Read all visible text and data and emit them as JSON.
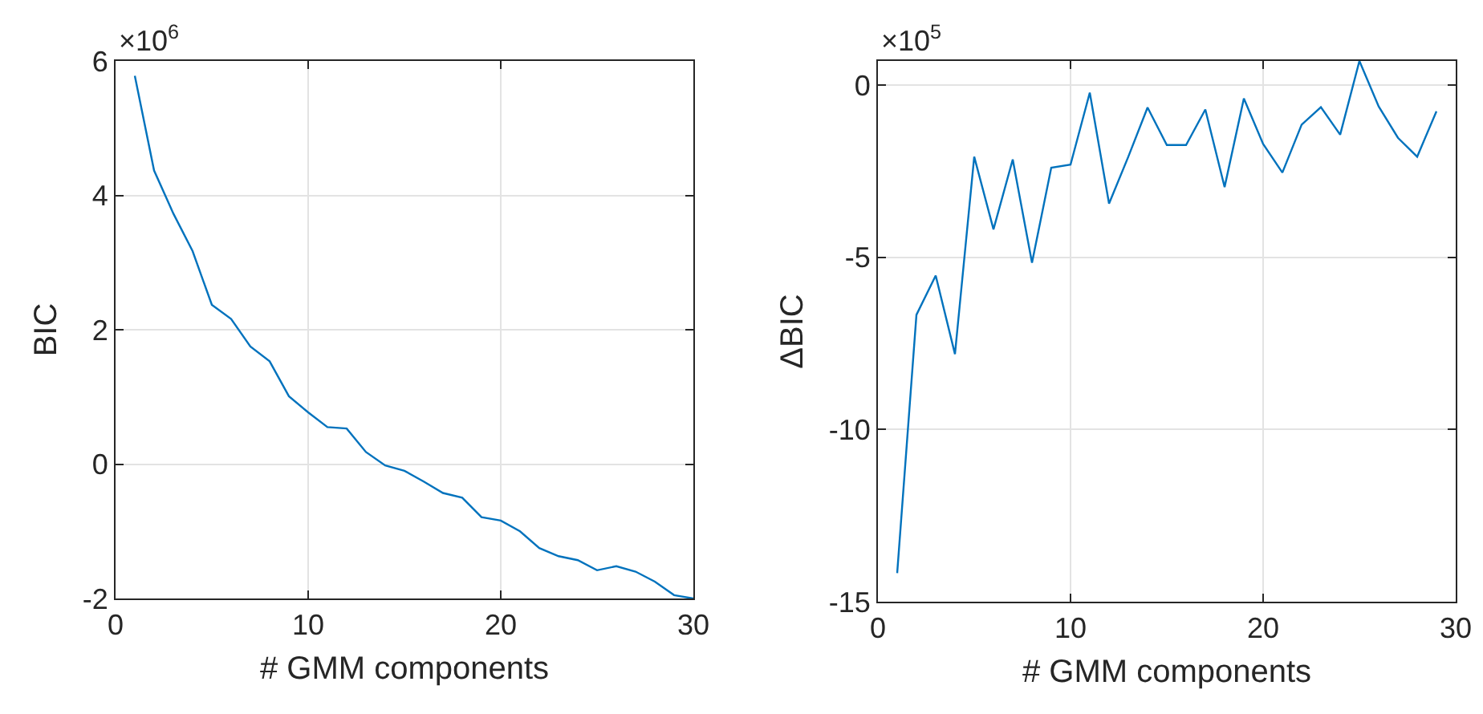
{
  "chart_data": [
    {
      "type": "line",
      "xlabel": "# GMM components",
      "ylabel": "BIC",
      "annotations": [
        "×10$^{6}$"
      ],
      "x": [
        1,
        2,
        3,
        4,
        5,
        6,
        7,
        8,
        9,
        10,
        11,
        12,
        13,
        14,
        15,
        16,
        17,
        18,
        19,
        20,
        21,
        22,
        23,
        24,
        25,
        26,
        27,
        28,
        29,
        30
      ],
      "series": [
        {
          "color": "#0072bd",
          "values": [
            5.78,
            4.37,
            3.73,
            3.17,
            2.37,
            2.16,
            1.75,
            1.53,
            1.01,
            0.77,
            0.55,
            0.53,
            0.18,
            -0.02,
            -0.1,
            -0.26,
            -0.43,
            -0.5,
            -0.79,
            -0.84,
            -1.0,
            -1.25,
            -1.37,
            -1.43,
            -1.58,
            -1.52,
            -1.6,
            -1.75,
            -1.95,
            -2.0
          ]
        }
      ],
      "xlim": [
        0,
        30
      ],
      "xticks": [
        0,
        10,
        20,
        30
      ],
      "ylim": [
        -2,
        6
      ],
      "yticks": [
        -2,
        0,
        2,
        4,
        6
      ],
      "grid": true,
      "marker": "none",
      "line_style": "solid"
    },
    {
      "type": "line",
      "xlabel": "# GMM components",
      "ylabel": "ΔBIC",
      "annotations": [
        "×10$^{5}$"
      ],
      "x": [
        1,
        2,
        3,
        4,
        5,
        6,
        7,
        8,
        9,
        10,
        11,
        12,
        13,
        14,
        15,
        16,
        17,
        18,
        19,
        20,
        21,
        22,
        23,
        24,
        25,
        26,
        27,
        28,
        29
      ],
      "series": [
        {
          "color": "#0072bd",
          "values": [
            -14.17,
            -6.67,
            -5.53,
            -7.81,
            -2.08,
            -4.19,
            -2.16,
            -5.16,
            -2.4,
            -2.31,
            -0.22,
            -3.44,
            -2.08,
            -0.65,
            -1.74,
            -1.74,
            -0.71,
            -2.96,
            -0.39,
            -1.71,
            -2.54,
            -1.15,
            -0.64,
            -1.44,
            0.7,
            -0.62,
            -1.53,
            -2.08,
            -0.76
          ]
        }
      ],
      "xlim": [
        0,
        30
      ],
      "xticks": [
        0,
        10,
        20,
        30
      ],
      "ylim": [
        -15,
        0.7
      ],
      "yticks": [
        -15,
        -10,
        -5,
        0
      ],
      "grid": true,
      "marker": "none",
      "line_style": "solid"
    }
  ]
}
